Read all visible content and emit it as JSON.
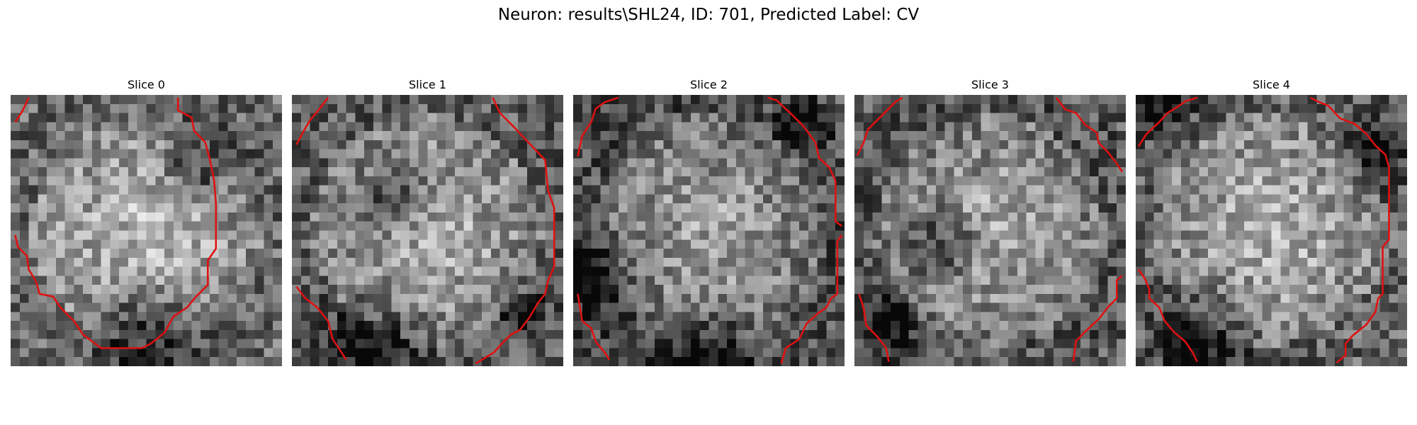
{
  "figure": {
    "title": "Neuron: results\\SHL24, ID: 701, Predicted Label: CV"
  },
  "panels": [
    {
      "title": "Slice 0",
      "seed": 11,
      "dark_spots": [
        [
          0.7,
          0.25,
          0.09
        ],
        [
          0.5,
          0.88,
          0.12
        ]
      ],
      "bright": 0.62
    },
    {
      "title": "Slice 1",
      "seed": 23,
      "dark_spots": [
        [
          0.38,
          0.38,
          0.08
        ],
        [
          0.3,
          0.94,
          0.12
        ],
        [
          0.85,
          0.8,
          0.06
        ]
      ],
      "bright": 0.58
    },
    {
      "title": "Slice 2",
      "seed": 37,
      "dark_spots": [
        [
          0.05,
          0.65,
          0.1
        ],
        [
          0.5,
          0.97,
          0.1
        ],
        [
          0.85,
          0.1,
          0.06
        ]
      ],
      "bright": 0.52
    },
    {
      "title": "Slice 3",
      "seed": 51,
      "dark_spots": [
        [
          0.33,
          0.55,
          0.08
        ],
        [
          0.12,
          0.85,
          0.08
        ]
      ],
      "bright": 0.55
    },
    {
      "title": "Slice 4",
      "seed": 67,
      "dark_spots": [
        [
          0.08,
          0.04,
          0.08
        ],
        [
          0.25,
          0.9,
          0.12
        ],
        [
          0.9,
          0.2,
          0.08
        ]
      ],
      "bright": 0.6
    }
  ],
  "contour_color": "#e01010"
}
